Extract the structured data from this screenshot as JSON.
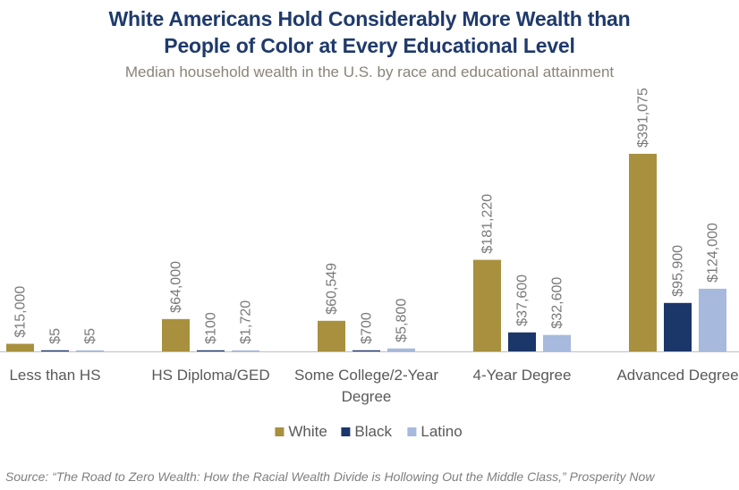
{
  "chart_data": {
    "type": "bar",
    "title_lines": [
      "White Americans Hold Considerably More Wealth than",
      "People of Color at Every Educational Level"
    ],
    "subtitle": "Median household wealth in the U.S. by race and educational attainment",
    "categories": [
      [
        "Less than HS"
      ],
      [
        "HS Diploma/GED"
      ],
      [
        "Some College/2-Year",
        "Degree"
      ],
      [
        "4-Year Degree"
      ],
      [
        "Advanced Degree"
      ]
    ],
    "series": [
      {
        "name": "White",
        "color": "#a8903e",
        "values": [
          15000,
          64000,
          60549,
          181220,
          391075
        ],
        "labels": [
          "$15,000",
          "$64,000",
          "$60,549",
          "$181,220",
          "$391,075"
        ]
      },
      {
        "name": "Black",
        "color": "#1b3669",
        "values": [
          5,
          100,
          700,
          37600,
          95900
        ],
        "labels": [
          "$5",
          "$100",
          "$700",
          "$37,600",
          "$95,900"
        ]
      },
      {
        "name": "Latino",
        "color": "#a7b9dc",
        "values": [
          5,
          1720,
          5800,
          32600,
          124000
        ],
        "labels": [
          "$5",
          "$1,720",
          "$5,800",
          "$32,600",
          "$124,000"
        ]
      }
    ],
    "ylim": [
      0,
      400000
    ],
    "grid": false,
    "legend": "bottom"
  },
  "source": "Source: “The Road to Zero Wealth: How the Racial Wealth Divide is Hollowing Out the Middle Class,” Prosperity Now"
}
